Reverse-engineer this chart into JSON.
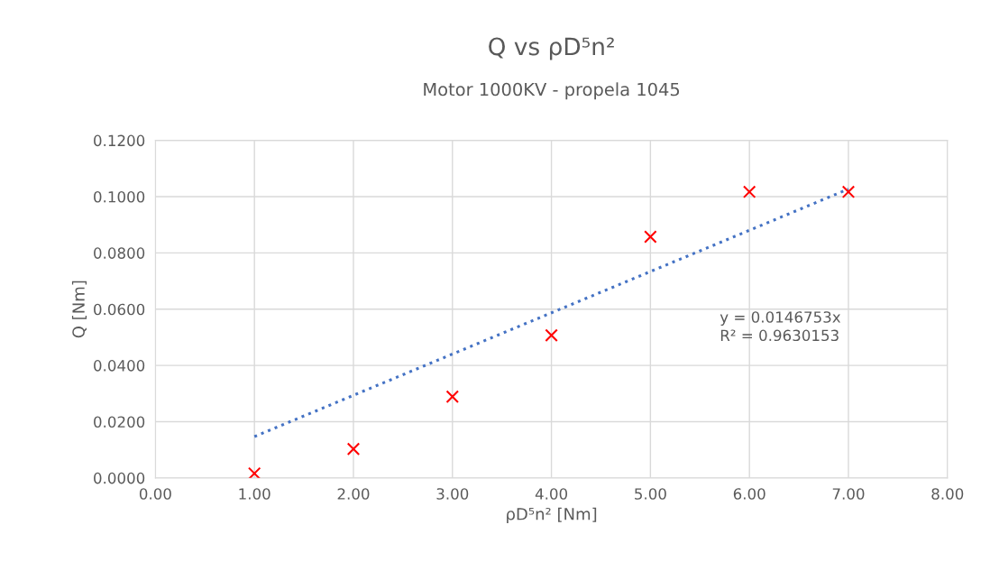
{
  "chart_data": {
    "type": "scatter",
    "title": "Q vs ρD⁵n²",
    "subtitle": "Motor 1000KV - propela 1045",
    "xlabel": "ρD⁵n² [Nm]",
    "ylabel": "Q [Nm]",
    "series": [
      {
        "color": "#ff0000",
        "marker": "cross",
        "x": [
          1,
          2,
          3,
          4,
          5,
          6,
          7
        ],
        "values": [
          0.0016,
          0.0103,
          0.0289,
          0.0507,
          0.0857,
          0.1017,
          0.1017
        ]
      },
      {
        "type": "line",
        "color": "#4472c4",
        "marker": "none",
        "line_style": "dotted",
        "x": [
          1,
          7
        ],
        "values": [
          0.0147,
          0.1027
        ]
      }
    ],
    "annotations": [
      "y = 0.0146753x",
      "R² = 0.9630153"
    ],
    "xlim": [
      0,
      8
    ],
    "ylim": [
      0,
      0.12
    ],
    "xticks": [
      {
        "value": 0,
        "label": "0.00"
      },
      {
        "value": 1,
        "label": "1.00"
      },
      {
        "value": 2,
        "label": "2.00"
      },
      {
        "value": 3,
        "label": "3.00"
      },
      {
        "value": 4,
        "label": "4.00"
      },
      {
        "value": 5,
        "label": "5.00"
      },
      {
        "value": 6,
        "label": "6.00"
      },
      {
        "value": 7,
        "label": "7.00"
      },
      {
        "value": 8,
        "label": "8.00"
      }
    ],
    "yticks": [
      {
        "value": 0,
        "label": "0.0000"
      },
      {
        "value": 0.02,
        "label": "0.0200"
      },
      {
        "value": 0.04,
        "label": "0.0400"
      },
      {
        "value": 0.06,
        "label": "0.0600"
      },
      {
        "value": 0.08,
        "label": "0.0800"
      },
      {
        "value": 0.1,
        "label": "0.1000"
      },
      {
        "value": 0.12,
        "label": "0.1200"
      }
    ],
    "grid": true,
    "legend": false
  }
}
